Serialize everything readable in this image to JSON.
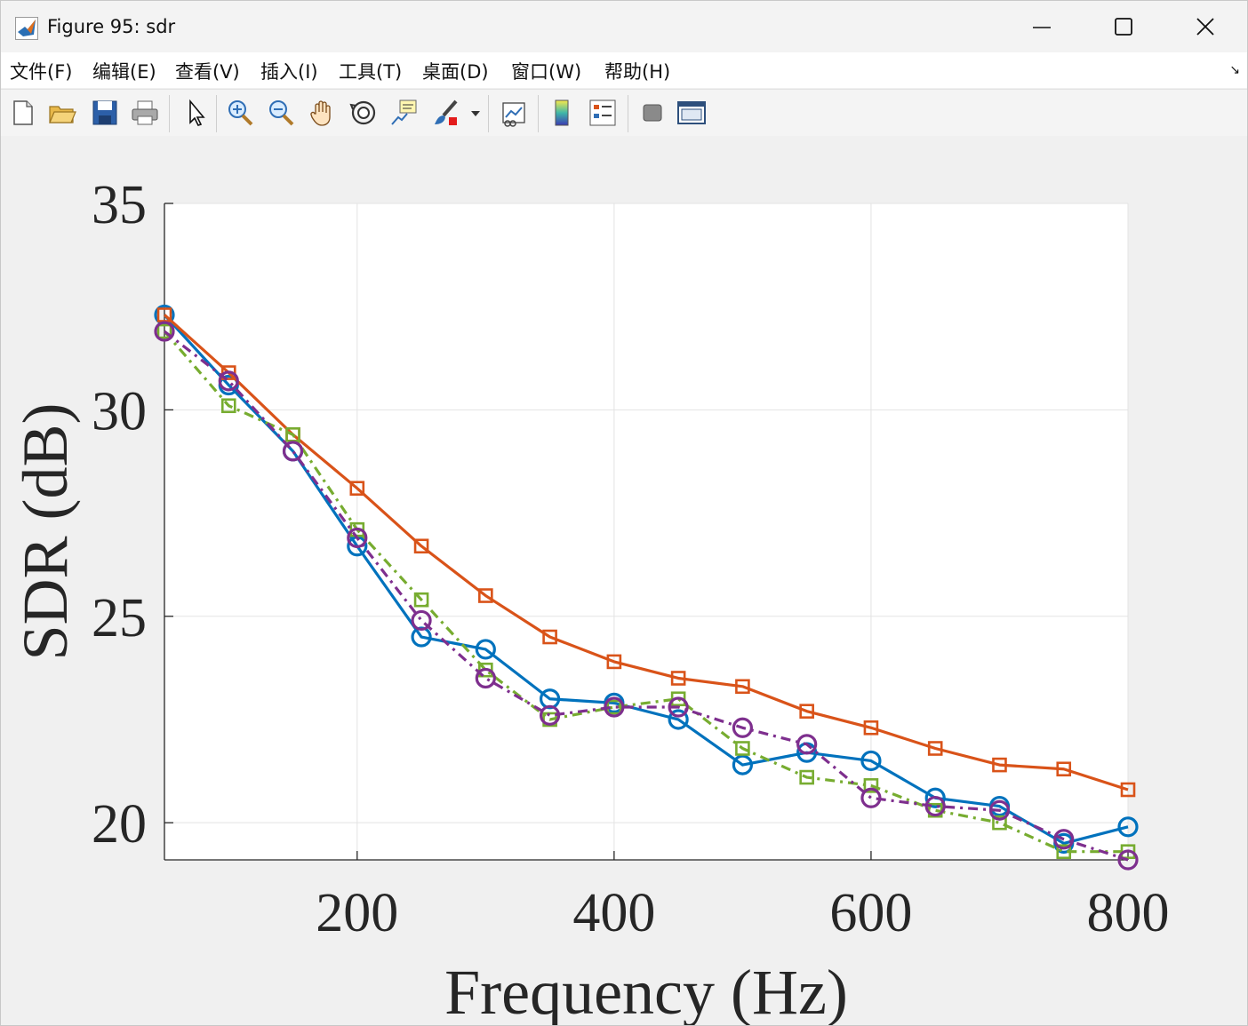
{
  "window": {
    "title": "Figure 95: sdr",
    "controls": [
      "minimize",
      "maximize",
      "close"
    ]
  },
  "menubar": {
    "items": [
      "文件(F)",
      "编辑(E)",
      "查看(V)",
      "插入(I)",
      "工具(T)",
      "桌面(D)",
      "窗口(W)",
      "帮助(H)"
    ]
  },
  "toolbar": {
    "buttons": [
      "new-figure-icon",
      "open-file-icon",
      "save-icon",
      "print-icon",
      "pointer-icon",
      "zoom-in-icon",
      "zoom-out-icon",
      "pan-hand-icon",
      "rotate-3d-icon",
      "data-cursor-icon",
      "brush-icon",
      "brush-dropdown-icon",
      "link-plot-icon",
      "colorbar-icon",
      "legend-icon",
      "hide-plot-tools-icon",
      "show-plot-tools-icon"
    ]
  },
  "chart_data": {
    "type": "line",
    "title": "",
    "xlabel": "Frequency (Hz)",
    "ylabel": "SDR (dB)",
    "xlim": [
      50,
      800
    ],
    "ylim": [
      19.1,
      35
    ],
    "xticks": [
      200,
      400,
      600,
      800
    ],
    "yticks": [
      20,
      25,
      30,
      35
    ],
    "grid": true,
    "x": [
      50,
      100,
      150,
      200,
      250,
      300,
      350,
      400,
      450,
      500,
      550,
      600,
      650,
      700,
      750,
      800
    ],
    "series": [
      {
        "color": "#0072BD",
        "line": "solid",
        "marker": "circle",
        "values": [
          32.3,
          30.6,
          29.0,
          26.7,
          24.5,
          24.2,
          23.0,
          22.9,
          22.5,
          21.4,
          21.7,
          21.5,
          20.6,
          20.4,
          19.5,
          19.9
        ]
      },
      {
        "color": "#D95319",
        "line": "solid",
        "marker": "square",
        "values": [
          32.3,
          30.9,
          29.4,
          28.1,
          26.7,
          25.5,
          24.5,
          23.9,
          23.5,
          23.3,
          22.7,
          22.3,
          21.8,
          21.4,
          21.3,
          20.8
        ]
      },
      {
        "color": "#77AC30",
        "line": "dashdot",
        "marker": "square",
        "values": [
          31.9,
          30.1,
          29.4,
          27.1,
          25.4,
          23.7,
          22.5,
          22.8,
          23.0,
          21.8,
          21.1,
          20.9,
          20.3,
          20.0,
          19.3,
          19.3
        ]
      },
      {
        "color": "#7E2F8E",
        "line": "dashdot",
        "marker": "circle",
        "values": [
          31.9,
          30.7,
          29.0,
          26.9,
          24.9,
          23.5,
          22.6,
          22.8,
          22.8,
          22.3,
          21.9,
          20.6,
          20.4,
          20.3,
          19.6,
          19.1
        ]
      }
    ]
  }
}
